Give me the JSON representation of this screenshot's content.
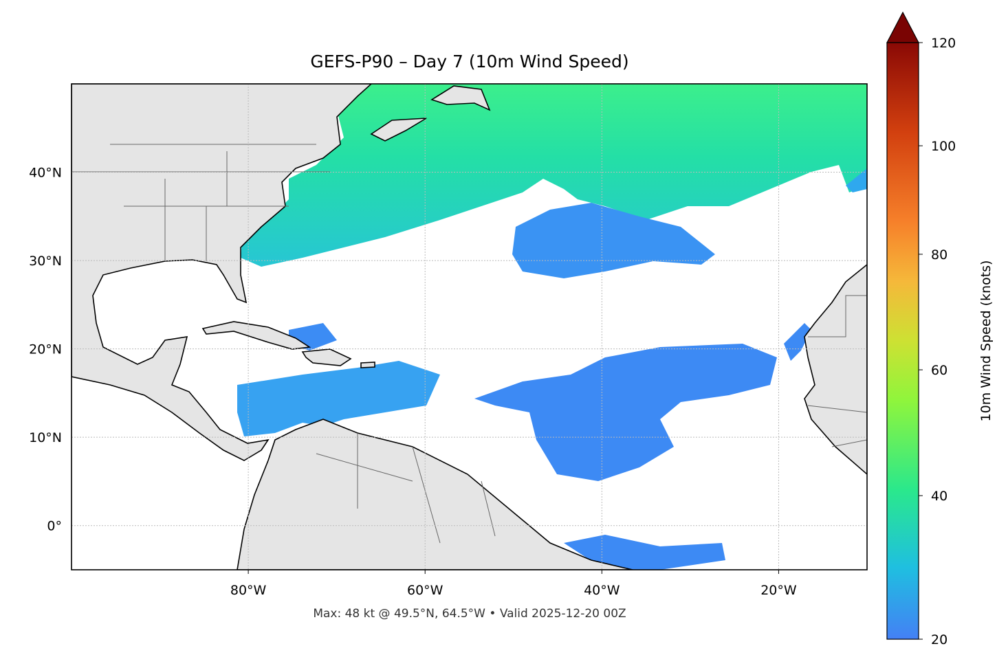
{
  "chart_data": {
    "type": "map",
    "title": "GEFS-P90 – Day 7 (10m Wind Speed)",
    "note": "Max: 48 kt @ 49.5°N, 64.5°W • Valid 2025-12-20 00Z",
    "xlim": [
      -100,
      -10
    ],
    "ylim": [
      -5,
      50
    ],
    "xticks": [
      {
        "value": -80,
        "label": "80°W"
      },
      {
        "value": -60,
        "label": "60°W"
      },
      {
        "value": -40,
        "label": "40°W"
      },
      {
        "value": -20,
        "label": "20°W"
      }
    ],
    "yticks": [
      {
        "value": 0,
        "label": "0°"
      },
      {
        "value": 10,
        "label": "10°N"
      },
      {
        "value": 20,
        "label": "20°N"
      },
      {
        "value": 30,
        "label": "30°N"
      },
      {
        "value": 40,
        "label": "40°N"
      }
    ],
    "grid": true,
    "colorbar": {
      "label": "10m Wind Speed (knots)",
      "lim": [
        20,
        120
      ],
      "ticks": [
        20,
        40,
        60,
        80,
        100,
        120
      ],
      "scale": "power",
      "exponent": 0.75,
      "extend": "max"
    }
  }
}
